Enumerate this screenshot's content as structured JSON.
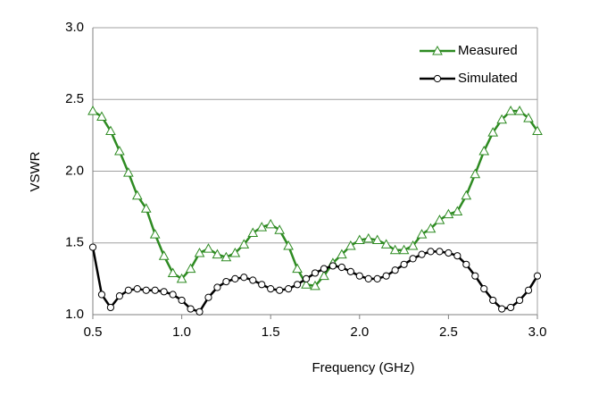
{
  "chart_data": {
    "type": "line",
    "x_label": "Frequency (GHz)",
    "y_label": "VSWR",
    "x": [
      0.5,
      0.55,
      0.6,
      0.65,
      0.7,
      0.75,
      0.8,
      0.85,
      0.9,
      0.95,
      1.0,
      1.05,
      1.1,
      1.15,
      1.2,
      1.25,
      1.3,
      1.35,
      1.4,
      1.45,
      1.5,
      1.55,
      1.6,
      1.65,
      1.7,
      1.75,
      1.8,
      1.85,
      1.9,
      1.95,
      2.0,
      2.05,
      2.1,
      2.15,
      2.2,
      2.25,
      2.3,
      2.35,
      2.4,
      2.45,
      2.5,
      2.55,
      2.6,
      2.65,
      2.7,
      2.75,
      2.8,
      2.85,
      2.9,
      2.95,
      3.0
    ],
    "series": [
      {
        "name": "Measured",
        "color": "#2e8b22",
        "marker": "triangle",
        "values": [
          2.42,
          2.38,
          2.28,
          2.14,
          1.99,
          1.83,
          1.74,
          1.56,
          1.41,
          1.29,
          1.25,
          1.32,
          1.43,
          1.46,
          1.42,
          1.4,
          1.43,
          1.49,
          1.57,
          1.61,
          1.63,
          1.59,
          1.48,
          1.32,
          1.21,
          1.2,
          1.27,
          1.36,
          1.42,
          1.48,
          1.52,
          1.53,
          1.52,
          1.49,
          1.45,
          1.45,
          1.48,
          1.56,
          1.6,
          1.66,
          1.7,
          1.72,
          1.83,
          1.98,
          2.14,
          2.27,
          2.36,
          2.42,
          2.42,
          2.37,
          2.28
        ]
      },
      {
        "name": "Simulated",
        "color": "#000000",
        "marker": "circle",
        "values": [
          1.47,
          1.14,
          1.05,
          1.13,
          1.17,
          1.18,
          1.17,
          1.17,
          1.16,
          1.14,
          1.1,
          1.04,
          1.02,
          1.12,
          1.19,
          1.23,
          1.25,
          1.26,
          1.24,
          1.21,
          1.18,
          1.17,
          1.18,
          1.21,
          1.25,
          1.29,
          1.32,
          1.34,
          1.33,
          1.3,
          1.27,
          1.25,
          1.25,
          1.27,
          1.31,
          1.35,
          1.39,
          1.42,
          1.44,
          1.44,
          1.43,
          1.41,
          1.35,
          1.27,
          1.18,
          1.1,
          1.04,
          1.05,
          1.1,
          1.17,
          1.27
        ]
      }
    ],
    "xlim": [
      0.5,
      3.0
    ],
    "ylim": [
      1.0,
      3.0
    ],
    "xticks": [
      0.5,
      {
        "value": 1,
        "label": "1.0"
      },
      1.5,
      {
        "value": 2,
        "label": "2.0"
      },
      2.5,
      {
        "value": 3,
        "label": "3.0"
      }
    ],
    "yticks": [
      {
        "value": 1,
        "label": "1.0"
      },
      1.5,
      {
        "value": 2,
        "label": "2.0"
      },
      2.5,
      {
        "value": 3,
        "label": "3.0"
      }
    ],
    "grid": true,
    "legend": "upper right"
  }
}
